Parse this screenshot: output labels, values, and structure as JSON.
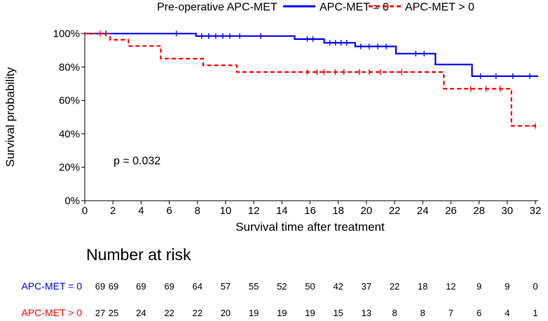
{
  "chart_data": {
    "type": "line",
    "subtype": "kaplan-meier",
    "xlabel": "Survival time after treatment",
    "ylabel": "Survival probability",
    "xlim": [
      0,
      32
    ],
    "ylim": [
      0,
      100
    ],
    "x_ticks": [
      0,
      2,
      4,
      6,
      8,
      10,
      12,
      14,
      16,
      18,
      20,
      22,
      24,
      26,
      28,
      30,
      32
    ],
    "y_ticks": [
      0,
      20,
      40,
      60,
      80,
      100
    ],
    "y_tick_labels": [
      "0%",
      "20%",
      "40%",
      "60%",
      "80%",
      "100%"
    ],
    "legend_title": "Pre-operative APC-MET",
    "legend_position": "top",
    "annotation": "p = 0.032",
    "series": [
      {
        "name": "APC-MET = 0",
        "color": "#0000ff",
        "line_style": "solid",
        "steps": [
          [
            0,
            100
          ],
          [
            7.9,
            98.5
          ],
          [
            14.9,
            96.7
          ],
          [
            17.0,
            94.5
          ],
          [
            19.2,
            92.3
          ],
          [
            22.1,
            88.0
          ],
          [
            24.9,
            81.5
          ],
          [
            27.5,
            74.5
          ],
          [
            32.2,
            74.5
          ]
        ],
        "censored": [
          [
            1.5,
            100
          ],
          [
            6.5,
            100
          ],
          [
            8.3,
            98.5
          ],
          [
            8.8,
            98.5
          ],
          [
            9.3,
            98.5
          ],
          [
            9.8,
            98.5
          ],
          [
            10.3,
            98.5
          ],
          [
            11.0,
            98.5
          ],
          [
            12.5,
            98.5
          ],
          [
            15.8,
            96.7
          ],
          [
            16.2,
            96.7
          ],
          [
            17.4,
            94.5
          ],
          [
            17.8,
            94.5
          ],
          [
            18.2,
            94.5
          ],
          [
            18.6,
            94.5
          ],
          [
            19.6,
            92.3
          ],
          [
            20.2,
            92.3
          ],
          [
            20.8,
            92.3
          ],
          [
            21.4,
            92.3
          ],
          [
            23.5,
            88.0
          ],
          [
            24.1,
            88.0
          ],
          [
            28.1,
            74.5
          ],
          [
            29.2,
            74.5
          ],
          [
            30.4,
            74.5
          ],
          [
            31.6,
            74.5
          ]
        ]
      },
      {
        "name": "APC-MET > 0",
        "color": "#ff0000",
        "line_style": "dashed",
        "steps": [
          [
            0,
            100
          ],
          [
            1.8,
            96.3
          ],
          [
            3.1,
            92.6
          ],
          [
            5.4,
            85.0
          ],
          [
            8.4,
            81.0
          ],
          [
            10.8,
            77.0
          ],
          [
            25.5,
            67.0
          ],
          [
            30.3,
            44.8
          ],
          [
            32.2,
            44.8
          ]
        ],
        "censored": [
          [
            1.1,
            100
          ],
          [
            15.8,
            77.0
          ],
          [
            16.5,
            77.0
          ],
          [
            17.0,
            77.0
          ],
          [
            17.8,
            77.0
          ],
          [
            18.4,
            77.0
          ],
          [
            19.5,
            77.0
          ],
          [
            20.2,
            77.0
          ],
          [
            21.0,
            77.0
          ],
          [
            22.5,
            77.0
          ],
          [
            27.4,
            67.0
          ],
          [
            28.5,
            67.0
          ],
          [
            29.5,
            67.0
          ],
          [
            32.0,
            44.8
          ]
        ]
      }
    ]
  },
  "risk_table": {
    "title": "Number at risk",
    "rows": [
      {
        "label": "APC-MET = 0",
        "color": "#0000ff",
        "x": [
          1,
          2,
          4,
          6,
          8,
          10,
          12,
          14,
          16,
          18,
          20,
          22,
          24,
          26,
          28,
          30,
          32
        ],
        "values": [
          "69",
          "69",
          "69",
          "69",
          "64",
          "57",
          "55",
          "52",
          "50",
          "42",
          "37",
          "22",
          "18",
          "12",
          "9",
          "9",
          "0"
        ]
      },
      {
        "label": "APC-MET > 0",
        "color": "#ff0000",
        "x": [
          1,
          2,
          4,
          6,
          8,
          10,
          12,
          14,
          16,
          18,
          20,
          22,
          24,
          26,
          28,
          30,
          32
        ],
        "values": [
          "27",
          "25",
          "24",
          "22",
          "22",
          "20",
          "19",
          "19",
          "19",
          "15",
          "13",
          "8",
          "8",
          "7",
          "6",
          "4",
          "1"
        ]
      }
    ]
  }
}
